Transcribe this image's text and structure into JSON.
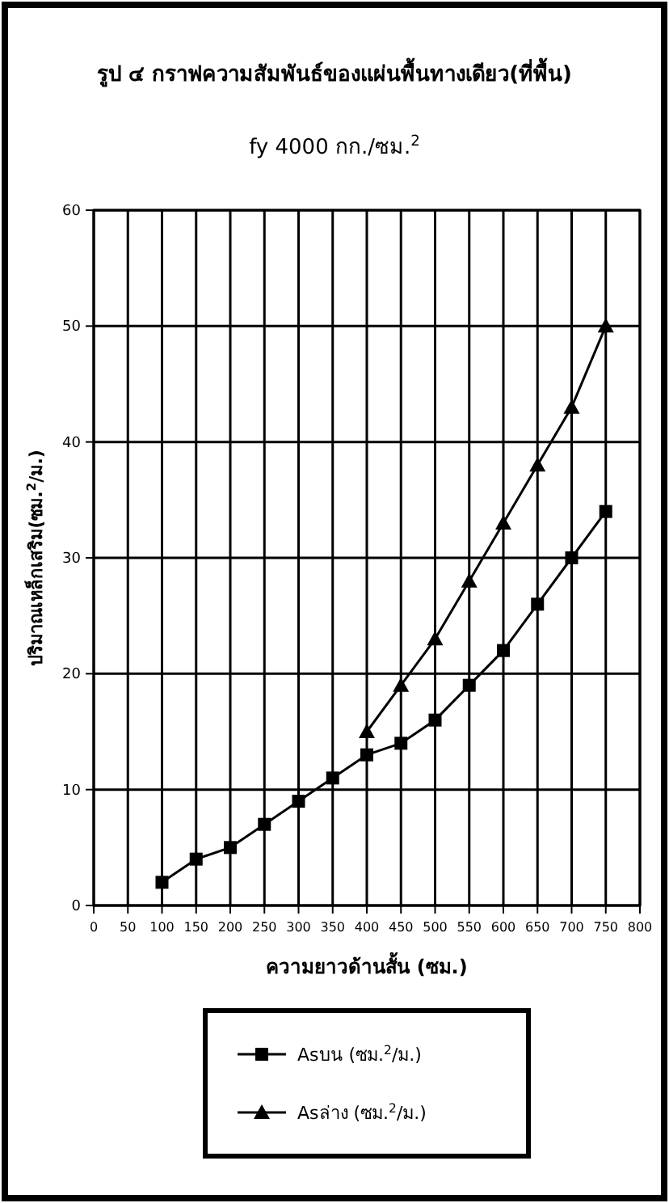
{
  "chart_data": {
    "type": "line",
    "title": "รูป ๔ กราฟความสัมพันธ์ของแผ่นพื้นทางเดียว(ที่พื้น)",
    "subtitle": "fy 4000 กก./ซม.$^{2}$",
    "xlabel": "ความยาวด้านสั้น (ซม.)",
    "ylabel": "ปริมาณเหล็กเสริม(ซม.$^{2}$/ม.)",
    "x": [
      100,
      150,
      200,
      250,
      300,
      350,
      400,
      450,
      500,
      550,
      600,
      650,
      700,
      750
    ],
    "series": [
      {
        "name": "Asบน (ซม.$^{2}$/ม.)",
        "color": "#000000",
        "marker": "square",
        "values": [
          2,
          4,
          5,
          7,
          9,
          11,
          13,
          14,
          16,
          19,
          22,
          26,
          30,
          34
        ]
      },
      {
        "name": "Asล่าง (ซม.$^{2}$/ม.)",
        "color": "#000000",
        "marker": "triangle",
        "values": [
          null,
          null,
          null,
          null,
          null,
          null,
          15,
          19,
          23,
          28,
          33,
          38,
          43,
          50
        ]
      }
    ],
    "xlim": [
      0,
      800
    ],
    "xticks": [
      0,
      50,
      100,
      150,
      200,
      250,
      300,
      350,
      400,
      450,
      500,
      550,
      600,
      650,
      700,
      750,
      800
    ],
    "ylim": [
      0,
      60
    ],
    "yticks": [
      0,
      10,
      20,
      30,
      40,
      50,
      60
    ],
    "grid": true,
    "legend": "bottom",
    "line_style": "solid"
  }
}
